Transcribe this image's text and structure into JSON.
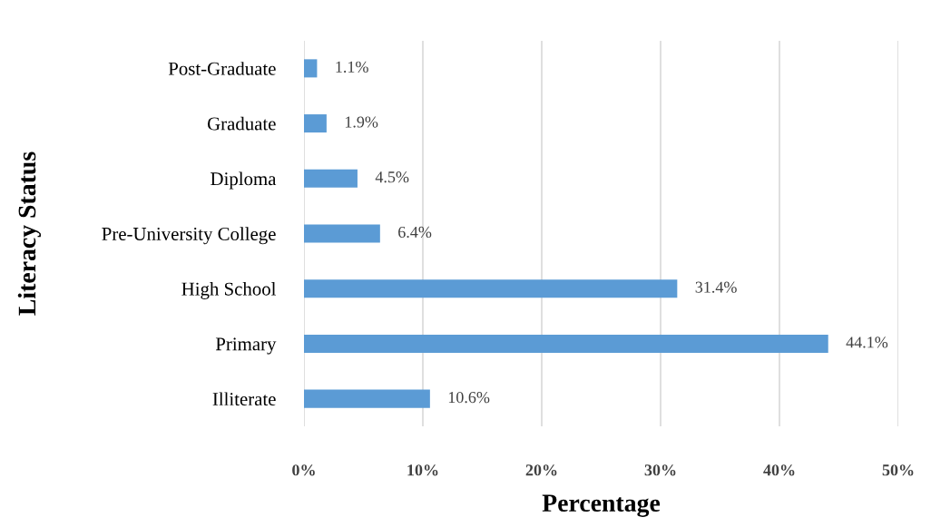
{
  "chart_data": {
    "type": "bar",
    "orientation": "horizontal",
    "xlabel": "Percentage",
    "ylabel": "Literacy Status",
    "categories": [
      "Post-Graduate",
      "Graduate",
      "Diploma",
      "Pre-University College",
      "High School",
      "Primary",
      "Illiterate"
    ],
    "values": [
      1.1,
      1.9,
      4.5,
      6.4,
      31.4,
      44.1,
      10.6
    ],
    "value_labels": [
      "1.1%",
      "1.9%",
      "4.5%",
      "6.4%",
      "31.4%",
      "44.1%",
      "10.6%"
    ],
    "color": "#5b9bd5",
    "xlim": [
      0,
      50
    ],
    "xticks": [
      {
        "value": 0,
        "label": "0%"
      },
      {
        "value": 10,
        "label": "10%"
      },
      {
        "value": 20,
        "label": "20%"
      },
      {
        "value": 30,
        "label": "30%"
      },
      {
        "value": 40,
        "label": "40%"
      },
      {
        "value": 50,
        "label": "50%"
      }
    ],
    "grid": "x",
    "legend": false
  }
}
